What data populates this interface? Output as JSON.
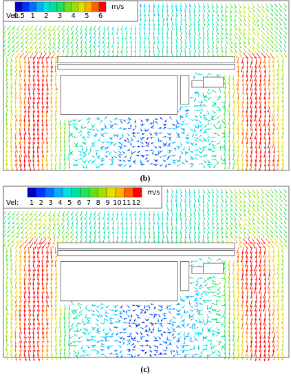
{
  "panels": [
    {
      "legend": {
        "label": "Vel:",
        "ticks": [
          0.5,
          1,
          2,
          3,
          4,
          5,
          6
        ],
        "unit": "m/s",
        "colors": [
          "#0000c0",
          "#0030ff",
          "#0070ff",
          "#00b0ff",
          "#00e0e0",
          "#00e0a0",
          "#20e060",
          "#60e020",
          "#a0e000",
          "#e0e000",
          "#ffb000",
          "#ff6000",
          "#ff0000"
        ]
      },
      "caption": "(b)"
    },
    {
      "legend": {
        "label": "Vel:",
        "ticks": [
          1,
          2,
          3,
          4,
          5,
          6,
          7,
          8,
          9,
          10,
          11,
          12
        ],
        "unit": "m/s",
        "colors": [
          "#0000c0",
          "#0030ff",
          "#0070ff",
          "#00b0ff",
          "#00e0e0",
          "#00e0a0",
          "#20e060",
          "#60e020",
          "#a0e000",
          "#e0e000",
          "#ffb000",
          "#ff6000",
          "#ff0000"
        ]
      },
      "caption": "(c)"
    }
  ]
}
